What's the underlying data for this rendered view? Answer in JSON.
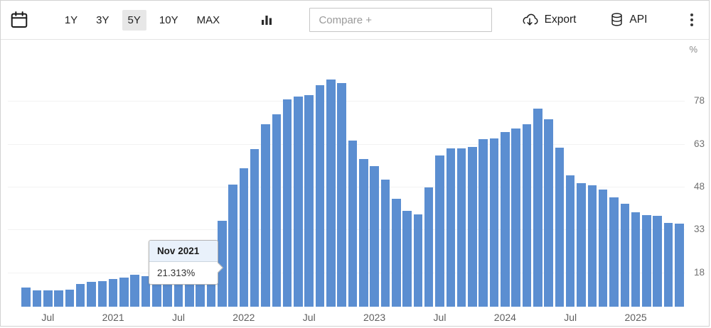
{
  "toolbar": {
    "ranges": [
      {
        "label": "1Y",
        "active": false
      },
      {
        "label": "3Y",
        "active": false
      },
      {
        "label": "5Y",
        "active": true
      },
      {
        "label": "10Y",
        "active": false
      },
      {
        "label": "MAX",
        "active": false
      }
    ],
    "compare_placeholder": "Compare +",
    "export_label": "Export",
    "api_label": "API"
  },
  "colors": {
    "bar": "#5b8ed1",
    "active_range_bg": "#e7e7e7",
    "tooltip_header_bg": "#e9f1fb"
  },
  "chart_data": {
    "type": "bar",
    "title": "",
    "unit": "%",
    "x": [
      "Jun 2020",
      "Jul 2020",
      "Aug 2020",
      "Sep 2020",
      "Oct 2020",
      "Nov 2020",
      "Dec 2020",
      "Jan 2021",
      "Feb 2021",
      "Mar 2021",
      "Apr 2021",
      "May 2021",
      "Jun 2021",
      "Jul 2021",
      "Aug 2021",
      "Sep 2021",
      "Oct 2021",
      "Nov 2021",
      "Dec 2021",
      "Jan 2022",
      "Feb 2022",
      "Mar 2022",
      "Apr 2022",
      "May 2022",
      "Jun 2022",
      "Jul 2022",
      "Aug 2022",
      "Sep 2022",
      "Oct 2022",
      "Nov 2022",
      "Dec 2022",
      "Jan 2023",
      "Feb 2023",
      "Mar 2023",
      "Apr 2023",
      "May 2023",
      "Jun 2023",
      "Jul 2023",
      "Aug 2023",
      "Sep 2023",
      "Oct 2023",
      "Nov 2023",
      "Dec 2023",
      "Jan 2024",
      "Feb 2024",
      "Mar 2024",
      "Apr 2024",
      "May 2024",
      "Jun 2024",
      "Jul 2024",
      "Aug 2024",
      "Sep 2024",
      "Oct 2024",
      "Nov 2024",
      "Dec 2024",
      "Jan 2025",
      "Feb 2025",
      "Mar 2025",
      "Apr 2025",
      "May 2025",
      "Jun 2025"
    ],
    "values": [
      12.62,
      11.76,
      11.77,
      11.75,
      11.89,
      14.03,
      14.6,
      14.97,
      15.61,
      16.19,
      17.14,
      16.59,
      17.53,
      18.95,
      19.25,
      19.58,
      19.89,
      21.313,
      36.08,
      48.69,
      54.44,
      61.14,
      69.97,
      73.5,
      78.62,
      79.6,
      80.21,
      83.45,
      85.51,
      84.39,
      64.27,
      57.68,
      55.18,
      50.51,
      43.68,
      39.59,
      38.21,
      47.83,
      58.94,
      61.53,
      61.36,
      61.98,
      64.77,
      64.86,
      67.07,
      68.5,
      69.8,
      75.45,
      71.6,
      61.78,
      51.97,
      49.38,
      48.58,
      47.09,
      44.38,
      42.12,
      39.05,
      38.1,
      37.86,
      35.41,
      35.05
    ],
    "ylim": [
      6,
      97
    ],
    "yticks": [
      18,
      33,
      48,
      63,
      78
    ],
    "xticks": [
      {
        "index": 1,
        "label": "Jul"
      },
      {
        "index": 7,
        "label": "2021"
      },
      {
        "index": 13,
        "label": "Jul"
      },
      {
        "index": 19,
        "label": "2022"
      },
      {
        "index": 25,
        "label": "Jul"
      },
      {
        "index": 31,
        "label": "2023"
      },
      {
        "index": 37,
        "label": "Jul"
      },
      {
        "index": 43,
        "label": "2024"
      },
      {
        "index": 49,
        "label": "Jul"
      },
      {
        "index": 55,
        "label": "2025"
      }
    ],
    "grid": "faint",
    "legend": "none",
    "tooltip": {
      "title": "Nov 2021",
      "value": "21.313%",
      "month_index": 17
    }
  }
}
